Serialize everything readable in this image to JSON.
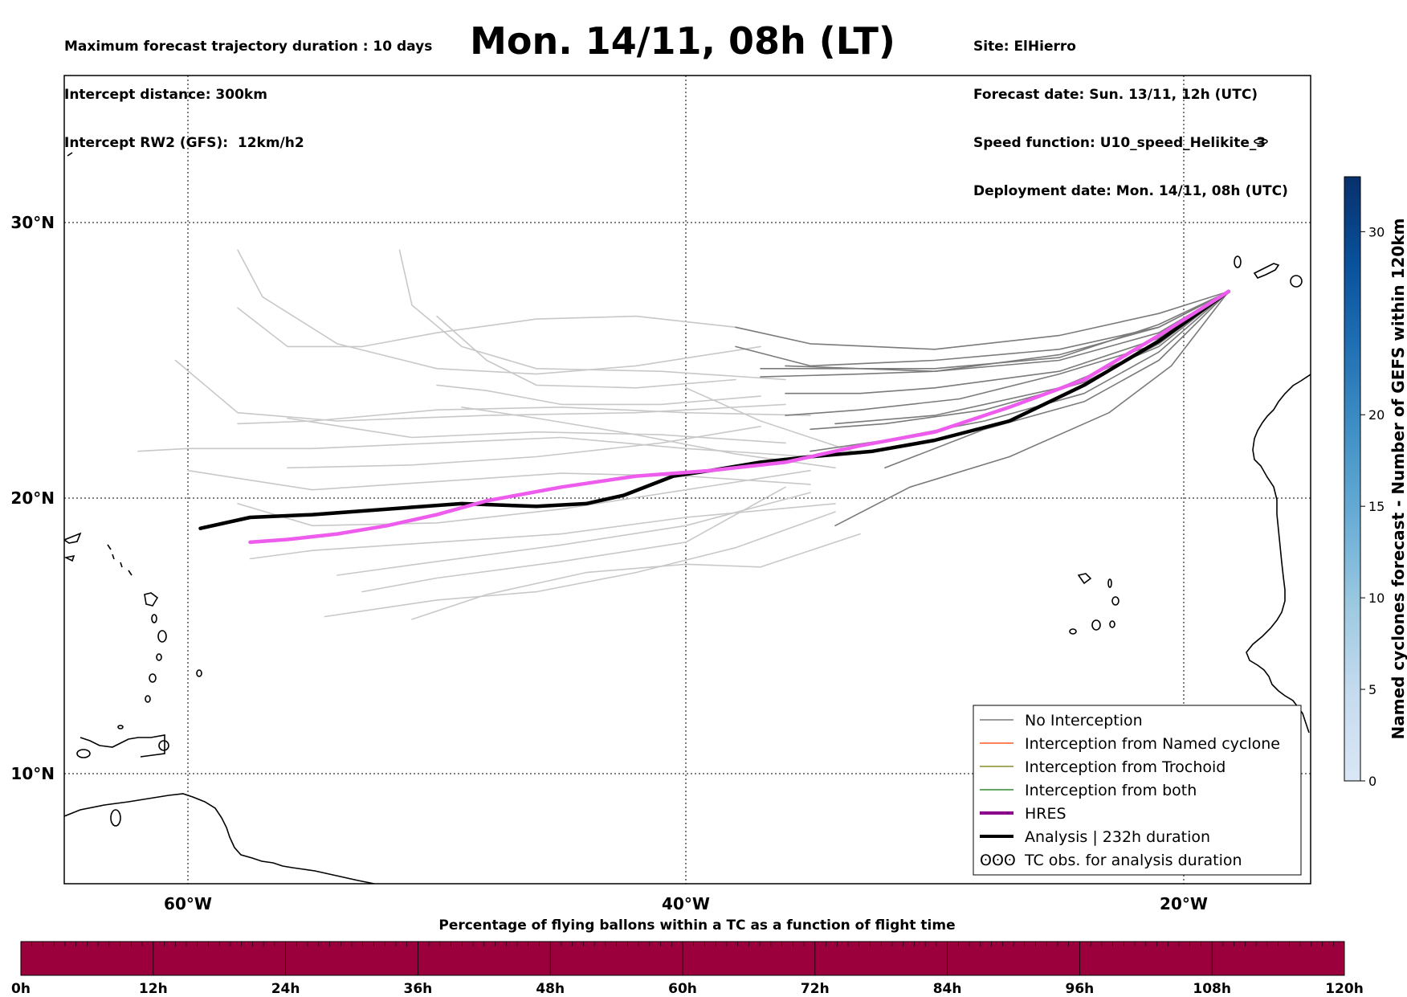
{
  "header": {
    "left": [
      "Maximum forecast trajectory duration : 10 days",
      "Intercept distance: 300km",
      "Intercept RW2 (GFS):  12km/h2"
    ],
    "right": [
      "Site: ElHierro",
      "Forecast date: Sun. 13/11, 12h (UTC)",
      "Speed function: U10_speed_Helikite_3",
      "Deployment date: Mon. 14/11, 08h (UTC)"
    ],
    "title": "Mon. 14/11, 08h (LT)"
  },
  "colors": {
    "no_interception": "#7a7a7a",
    "old_members": "#c8c8c8",
    "named_cyclone": "#ff5a1e",
    "trochoid": "#8a8a2a",
    "both": "#2e8b2e",
    "hres_legend": "#8b008b",
    "hres_track": "#ee5cee",
    "analysis": "#000000",
    "bar": "#9b003c"
  },
  "chart_data": [
    {
      "type": "line",
      "title": "Mon. 14/11, 08h (LT)",
      "projection": "lat-lon map",
      "xlim": [
        -65,
        -15
      ],
      "ylim": [
        5.5,
        35
      ],
      "xticks": [
        -60,
        -40,
        -20
      ],
      "xtick_labels": [
        "60°W",
        "40°W",
        "20°W"
      ],
      "yticks": [
        10,
        20,
        30
      ],
      "ytick_labels": [
        "10°N",
        "20°N",
        "30°N"
      ],
      "grid": true,
      "legend_position": "lower-right",
      "legend": [
        {
          "label": "No Interception",
          "style": "no_interception"
        },
        {
          "label": "Interception from Named cyclone",
          "style": "named_cyclone"
        },
        {
          "label": "Interception from Trochoid",
          "style": "trochoid"
        },
        {
          "label": "Interception from both",
          "style": "both"
        },
        {
          "label": "HRES",
          "style": "hres"
        },
        {
          "label": "Analysis | 232h duration",
          "style": "analysis"
        },
        {
          "label": "TC obs. for analysis duration",
          "style": "tc_obs"
        }
      ],
      "series": [
        {
          "name": "Analysis | 232h duration",
          "x": [
            -18.2,
            -21,
            -24,
            -27,
            -30,
            -32.5,
            -35,
            -37,
            -39,
            -40.5,
            -42.5,
            -44,
            -46,
            -49,
            -52,
            -55,
            -57.5,
            -59.5
          ],
          "y": [
            27.5,
            25.7,
            24.1,
            22.8,
            22.1,
            21.7,
            21.5,
            21.3,
            21.0,
            20.8,
            20.1,
            19.8,
            19.7,
            19.8,
            19.6,
            19.4,
            19.3,
            18.9
          ]
        },
        {
          "name": "HRES",
          "x": [
            -18.2,
            -21,
            -24,
            -27,
            -30,
            -33,
            -36,
            -39,
            -42,
            -45,
            -48,
            -50,
            -52,
            -54,
            -56,
            -57.5
          ],
          "y": [
            27.5,
            25.9,
            24.3,
            23.3,
            22.4,
            21.9,
            21.3,
            21.0,
            20.8,
            20.4,
            19.9,
            19.4,
            19.0,
            18.7,
            18.5,
            18.4
          ]
        },
        {
          "name": "",
          "group": "no_interception",
          "x": [
            -18.2,
            -21,
            -25,
            -30,
            -35,
            -38
          ],
          "y": [
            27.5,
            26.7,
            25.9,
            25.4,
            25.6,
            26.2
          ]
        },
        {
          "name": "",
          "group": "no_interception",
          "x": [
            -18.2,
            -21,
            -25,
            -30,
            -35,
            -38
          ],
          "y": [
            27.5,
            26.2,
            25.4,
            25.0,
            24.8,
            25.5
          ]
        },
        {
          "name": "",
          "group": "no_interception",
          "x": [
            -18.2,
            -21,
            -25,
            -30,
            -33,
            -37
          ],
          "y": [
            27.5,
            26.3,
            25.1,
            24.7,
            24.7,
            24.7
          ]
        },
        {
          "name": "",
          "group": "no_interception",
          "x": [
            -18.2,
            -21,
            -25,
            -30,
            -33,
            -37
          ],
          "y": [
            27.5,
            26.0,
            25.0,
            24.6,
            24.5,
            24.4
          ]
        },
        {
          "name": "",
          "group": "no_interception",
          "x": [
            -18.2,
            -21,
            -25,
            -30,
            -33,
            -36
          ],
          "y": [
            27.5,
            25.8,
            24.6,
            24.0,
            23.8,
            23.8
          ]
        },
        {
          "name": "",
          "group": "no_interception",
          "x": [
            -18.2,
            -21,
            -25,
            -29,
            -33,
            -36
          ],
          "y": [
            27.5,
            25.6,
            24.5,
            23.6,
            23.2,
            23.0
          ]
        },
        {
          "name": "",
          "group": "no_interception",
          "x": [
            -18.2,
            -21,
            -24,
            -28,
            -32,
            -35
          ],
          "y": [
            27.5,
            25.6,
            24.2,
            23.2,
            22.7,
            22.5
          ]
        },
        {
          "name": "",
          "group": "no_interception",
          "x": [
            -18.2,
            -21,
            -24,
            -28,
            -32,
            -35
          ],
          "y": [
            27.5,
            25.3,
            23.8,
            22.8,
            22.1,
            21.7
          ]
        },
        {
          "name": "",
          "group": "no_interception",
          "x": [
            -18.2,
            -21,
            -24,
            -28,
            -32
          ],
          "y": [
            27.5,
            25.0,
            23.5,
            22.5,
            21.1
          ]
        },
        {
          "name": "",
          "group": "no_interception",
          "x": [
            -18.2,
            -20.5,
            -23,
            -27,
            -31,
            -34
          ],
          "y": [
            27.5,
            24.8,
            23.1,
            21.5,
            20.4,
            19.0
          ]
        },
        {
          "name": "",
          "group": "no_interception",
          "x": [
            -18.2,
            -21,
            -25,
            -30,
            -36
          ],
          "y": [
            27.5,
            26.2,
            25.2,
            24.6,
            24.8
          ]
        },
        {
          "name": "",
          "group": "no_interception",
          "x": [
            -18.2,
            -21,
            -25,
            -30,
            -34
          ],
          "y": [
            27.5,
            25.5,
            24.0,
            23.0,
            22.7
          ]
        },
        {
          "name": "",
          "group": "old_members",
          "x": [
            -38,
            -42,
            -46,
            -50,
            -53,
            -56,
            -58
          ],
          "y": [
            26.2,
            26.6,
            26.5,
            26.0,
            25.5,
            25.5,
            26.9
          ]
        },
        {
          "name": "",
          "group": "old_members",
          "x": [
            -37,
            -42,
            -46,
            -50,
            -54,
            -57,
            -58
          ],
          "y": [
            25.5,
            24.8,
            24.5,
            24.7,
            25.6,
            27.3,
            29.0
          ]
        },
        {
          "name": "",
          "group": "old_members",
          "x": [
            -36,
            -41,
            -46,
            -49,
            -51,
            -51.5
          ],
          "y": [
            24.3,
            24.6,
            24.7,
            25.5,
            27.0,
            29.0
          ]
        },
        {
          "name": "",
          "group": "old_members",
          "x": [
            -38,
            -42,
            -46,
            -48,
            -50
          ],
          "y": [
            24.3,
            24.0,
            24.1,
            25.0,
            26.6
          ]
        },
        {
          "name": "",
          "group": "old_members",
          "x": [
            -37,
            -41,
            -45,
            -48,
            -50
          ],
          "y": [
            23.7,
            23.4,
            23.4,
            23.9,
            24.1
          ]
        },
        {
          "name": "",
          "group": "old_members",
          "x": [
            -36,
            -42,
            -48,
            -54,
            -58,
            -60.5
          ],
          "y": [
            23.4,
            23.1,
            23.0,
            22.8,
            23.1,
            25.0
          ]
        },
        {
          "name": "",
          "group": "old_members",
          "x": [
            -35,
            -40,
            -45,
            -50,
            -55,
            -58
          ],
          "y": [
            23.0,
            23.1,
            23.3,
            23.2,
            22.8,
            22.7
          ]
        },
        {
          "name": "",
          "group": "old_members",
          "x": [
            -36,
            -41,
            -46,
            -51,
            -56
          ],
          "y": [
            22.0,
            22.3,
            22.4,
            22.2,
            22.9
          ]
        },
        {
          "name": "",
          "group": "old_members",
          "x": [
            -35,
            -40,
            -45,
            -50,
            -55,
            -60,
            -62
          ],
          "y": [
            21.5,
            21.8,
            22.2,
            22.0,
            21.8,
            21.8,
            21.7
          ]
        },
        {
          "name": "",
          "group": "old_members",
          "x": [
            -35,
            -40,
            -45,
            -50,
            -55,
            -60
          ],
          "y": [
            20.5,
            20.8,
            20.9,
            20.6,
            20.3,
            21.0
          ]
        },
        {
          "name": "",
          "group": "old_members",
          "x": [
            -35,
            -40,
            -45,
            -50,
            -55,
            -58
          ],
          "y": [
            21.0,
            20.3,
            19.6,
            19.1,
            19.0,
            19.8
          ]
        },
        {
          "name": "",
          "group": "old_members",
          "x": [
            -34,
            -40,
            -45,
            -50,
            -55,
            -57.5
          ],
          "y": [
            19.8,
            19.3,
            18.7,
            18.4,
            18.1,
            17.8
          ]
        },
        {
          "name": "",
          "group": "old_members",
          "x": [
            -35,
            -40,
            -45,
            -50,
            -54
          ],
          "y": [
            20.2,
            19.0,
            18.3,
            17.7,
            17.2
          ]
        },
        {
          "name": "",
          "group": "old_members",
          "x": [
            -36,
            -40,
            -45,
            -50,
            -53
          ],
          "y": [
            20.4,
            18.4,
            17.7,
            17.1,
            16.6
          ]
        },
        {
          "name": "",
          "group": "old_members",
          "x": [
            -34,
            -38,
            -42,
            -46,
            -50,
            -54.5
          ],
          "y": [
            19.5,
            18.2,
            17.3,
            16.6,
            16.3,
            15.7
          ]
        },
        {
          "name": "",
          "group": "old_members",
          "x": [
            -33,
            -37,
            -40,
            -44,
            -48,
            -51
          ],
          "y": [
            18.7,
            17.5,
            17.6,
            17.3,
            16.5,
            15.6
          ]
        },
        {
          "name": "",
          "group": "old_members",
          "x": [
            -33,
            -37,
            -40
          ],
          "y": [
            21.6,
            22.8,
            24.0
          ]
        },
        {
          "name": "",
          "group": "old_members",
          "x": [
            -34,
            -38,
            -42,
            -46,
            -49
          ],
          "y": [
            21.1,
            21.6,
            22.3,
            22.9,
            23.3
          ]
        },
        {
          "name": "",
          "group": "old_members",
          "x": [
            -37,
            -41,
            -46,
            -51,
            -56
          ],
          "y": [
            22.6,
            22.0,
            21.5,
            21.2,
            21.1
          ]
        }
      ]
    },
    {
      "type": "heatmap",
      "name": "colorbar",
      "label": "Named cyclones forecast - Number of GEFS within 120km",
      "ticks": [
        0,
        5,
        10,
        15,
        20,
        30
      ],
      "range": [
        0,
        33
      ],
      "colors": [
        "#d9e7f5",
        "#c6dbef",
        "#9ecae1",
        "#6baed6",
        "#4292c6",
        "#2171b5",
        "#08519c",
        "#08306b"
      ]
    },
    {
      "type": "bar",
      "title": "Percentage of flying ballons within a TC as a function of flight time",
      "categories": [
        "0h",
        "12h",
        "24h",
        "36h",
        "48h",
        "60h",
        "72h",
        "84h",
        "96h",
        "108h",
        "120h"
      ],
      "values": [
        0,
        0,
        0,
        0,
        0,
        0,
        0,
        0,
        0,
        0,
        0
      ]
    }
  ]
}
